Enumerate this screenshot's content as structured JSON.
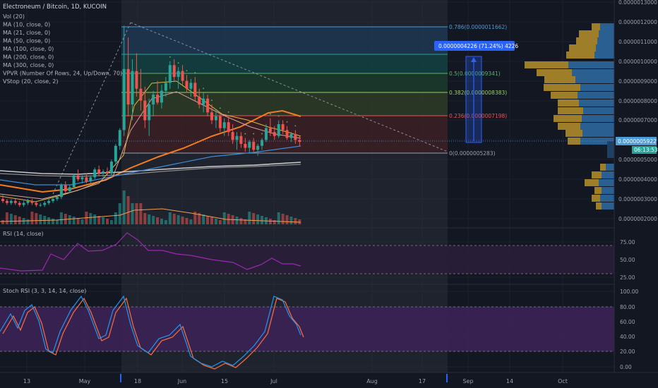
{
  "header": {
    "title": "Electroneum / Bitcoin, 1D, KUCOIN",
    "indicators": [
      "Vol (20)",
      "MA (10, close, 0)",
      "MA (21, close, 0)",
      "MA (50, close, 0)",
      "MA (100, close, 0)",
      "MA (200, close, 0)",
      "MA (300, close, 0)",
      "VPVR (Number Of Rows, 24, Up/Down, 70)",
      "VStop (20, close, 2)"
    ]
  },
  "colors": {
    "background": "#131722",
    "grid": "#1e2230",
    "up": "#26a69a",
    "down": "#ef5350",
    "ma_orange": "#f57c1f",
    "ma_yellow": "#e0b53a",
    "ma_pink": "#d9a0a0",
    "ma_blue": "#3d8bd4",
    "ma_white": "#c8c8c8",
    "vpvr_up": "#2e6da4",
    "vpvr_down": "#b7902a",
    "rsi_line": "#9c27b0",
    "rsi_band": "#2a1e3a",
    "stoch_k": "#2196f3",
    "stoch_d": "#ff6d3a",
    "stoch_band": "#3b2255",
    "accent_blue": "#2962ff"
  },
  "price_axis": {
    "ticks": [
      "0.0000013000",
      "0.0000012000",
      "0.0000011000",
      "0.0000010000",
      "0.0000009000",
      "0.0000008000",
      "0.0000007000",
      "0.0000006000",
      "0.0000005000",
      "0.0000004000",
      "0.0000003000",
      "0.0000002000"
    ],
    "current_price": "0.0000005922",
    "countdown": "06:13:53"
  },
  "rsi": {
    "title": "RSI (14, close)",
    "ticks": [
      "75.00",
      "50.00",
      "25.00"
    ]
  },
  "stoch": {
    "title": "Stoch RSI (3, 3, 14, 14, close)",
    "ticks": [
      "100.00",
      "80.00",
      "60.00",
      "40.00",
      "20.00",
      "0.00"
    ]
  },
  "time_axis": {
    "labels": [
      "13",
      "May",
      "18",
      "Jun",
      "15",
      "Jul",
      "Aug",
      "17",
      "Sep",
      "14",
      "Oct"
    ]
  },
  "fib": {
    "levels": [
      {
        "label": "0.786(0.0000011662)",
        "color": "#4b9bd6"
      },
      {
        "label": "0.5(0.0000009341)",
        "color": "#58b56c"
      },
      {
        "label": "0.382(0.0000008383)",
        "color": "#9ccc65"
      },
      {
        "label": "0.236(0.0000007198)",
        "color": "#ef5350"
      },
      {
        "label": "0(0.0000005283)",
        "color": "#9aa0ab"
      }
    ]
  },
  "measure": {
    "label": "0.0000004226 (71.24%) 4226"
  },
  "chart_data": {
    "type": "candlestick",
    "title": "Electroneum / Bitcoin, 1D, KUCOIN",
    "xlabel": "",
    "ylabel": "",
    "ylim": [
      1.7e-07,
      1.3e-06
    ],
    "candles": [
      [
        3e-07,
        3.2e-07,
        2.8e-07,
        2.9e-07
      ],
      [
        2.9e-07,
        3e-07,
        2.7e-07,
        2.8e-07
      ],
      [
        2.8e-07,
        3e-07,
        2.7e-07,
        2.9e-07
      ],
      [
        2.9e-07,
        3e-07,
        2.7e-07,
        2.8e-07
      ],
      [
        2.8e-07,
        2.9e-07,
        2.6e-07,
        2.7e-07
      ],
      [
        2.7e-07,
        2.9e-07,
        2.6e-07,
        2.8e-07
      ],
      [
        2.8e-07,
        3e-07,
        2.7e-07,
        2.9e-07
      ],
      [
        2.9e-07,
        3e-07,
        2.7e-07,
        2.8e-07
      ],
      [
        2.8e-07,
        2.9e-07,
        2.6e-07,
        2.7e-07
      ],
      [
        2.7e-07,
        2.8e-07,
        2.6e-07,
        2.7e-07
      ],
      [
        2.7e-07,
        2.9e-07,
        2.6e-07,
        2.8e-07
      ],
      [
        2.8e-07,
        3e-07,
        2.7e-07,
        2.9e-07
      ],
      [
        2.9e-07,
        3.1e-07,
        2.8e-07,
        3e-07
      ],
      [
        3e-07,
        3.2e-07,
        2.9e-07,
        3.1e-07
      ],
      [
        3.1e-07,
        3.8e-07,
        3e-07,
        3.7e-07
      ],
      [
        3.7e-07,
        3.9e-07,
        3.3e-07,
        3.4e-07
      ],
      [
        3.4e-07,
        3.7e-07,
        3.3e-07,
        3.6e-07
      ],
      [
        3.6e-07,
        4.3e-07,
        3.5e-07,
        4.2e-07
      ],
      [
        4.2e-07,
        4.5e-07,
        3.9e-07,
        4e-07
      ],
      [
        4e-07,
        4.2e-07,
        3.8e-07,
        4.1e-07
      ],
      [
        4.1e-07,
        4.3e-07,
        3.8e-07,
        3.9e-07
      ],
      [
        3.9e-07,
        4.2e-07,
        3.8e-07,
        4.1e-07
      ],
      [
        4.1e-07,
        4.6e-07,
        4e-07,
        4.5e-07
      ],
      [
        4.5e-07,
        4.7e-07,
        4.2e-07,
        4.3e-07
      ],
      [
        4.3e-07,
        4.5e-07,
        4.1e-07,
        4.4e-07
      ],
      [
        4.4e-07,
        4.6e-07,
        4.2e-07,
        4.3e-07
      ],
      [
        4.3e-07,
        5e-07,
        4.2e-07,
        4.9e-07
      ],
      [
        4.9e-07,
        5.8e-07,
        4.7e-07,
        5.7e-07
      ],
      [
        5.7e-07,
        6.6e-07,
        5.5e-07,
        6.5e-07
      ],
      [
        6.5e-07,
        1.18e-06,
        6.2e-07,
        9.6e-07
      ],
      [
        9.6e-07,
        1.12e-06,
        7.2e-07,
        7.8e-07
      ],
      [
        7.8e-07,
        1.01e-06,
        7e-07,
        9.5e-07
      ],
      [
        9.5e-07,
        1.04e-06,
        8.2e-07,
        8.6e-07
      ],
      [
        8.6e-07,
        9.6e-07,
        7.5e-07,
        8e-07
      ],
      [
        8e-07,
        8.7e-07,
        6.6e-07,
        7e-07
      ],
      [
        7e-07,
        8.1e-07,
        6.2e-07,
        7.8e-07
      ],
      [
        7.8e-07,
        8.5e-07,
        7.2e-07,
        8.3e-07
      ],
      [
        8.3e-07,
        9e-07,
        7.8e-07,
        7.9e-07
      ],
      [
        7.9e-07,
        8.8e-07,
        7.6e-07,
        8.5e-07
      ],
      [
        8.5e-07,
        9.2e-07,
        8.2e-07,
        8.9e-07
      ],
      [
        8.9e-07,
        1e-06,
        8.6e-07,
        9.8e-07
      ],
      [
        9.8e-07,
        1.01e-06,
        9e-07,
        9.2e-07
      ],
      [
        9.2e-07,
        9.7e-07,
        8.6e-07,
        9.5e-07
      ],
      [
        9.5e-07,
        9.8e-07,
        8.8e-07,
        9e-07
      ],
      [
        9e-07,
        9.3e-07,
        8.4e-07,
        8.6e-07
      ],
      [
        8.6e-07,
        9.1e-07,
        8.2e-07,
        8.9e-07
      ],
      [
        8.9e-07,
        9.2e-07,
        8e-07,
        8.2e-07
      ],
      [
        8.2e-07,
        8.6e-07,
        7.6e-07,
        7.8e-07
      ],
      [
        7.8e-07,
        8.4e-07,
        7.4e-07,
        8.1e-07
      ],
      [
        8.1e-07,
        8.3e-07,
        7.2e-07,
        7.4e-07
      ],
      [
        7.4e-07,
        7.8e-07,
        6.8e-07,
        7e-07
      ],
      [
        7e-07,
        7.5e-07,
        6.6e-07,
        7.2e-07
      ],
      [
        7.2e-07,
        7.4e-07,
        6.4e-07,
        6.6e-07
      ],
      [
        6.6e-07,
        7.1e-07,
        6.2e-07,
        6.9e-07
      ],
      [
        6.9e-07,
        7.2e-07,
        6.2e-07,
        6.4e-07
      ],
      [
        6.4e-07,
        6.8e-07,
        5.8e-07,
        6e-07
      ],
      [
        6e-07,
        6.4e-07,
        5.5e-07,
        6.2e-07
      ],
      [
        6.2e-07,
        6.4e-07,
        5.6e-07,
        5.8e-07
      ],
      [
        5.8e-07,
        6.1e-07,
        5.4e-07,
        5.6e-07
      ],
      [
        5.6e-07,
        6e-07,
        5.3e-07,
        5.9e-07
      ],
      [
        5.9e-07,
        6.1e-07,
        5.4e-07,
        5.5e-07
      ],
      [
        5.5e-07,
        5.8e-07,
        5.2e-07,
        5.7e-07
      ],
      [
        5.7e-07,
        6.1e-07,
        5.5e-07,
        6e-07
      ],
      [
        6e-07,
        6.8e-07,
        5.9e-07,
        6.6e-07
      ],
      [
        6.6e-07,
        7.1e-07,
        6.2e-07,
        6.4e-07
      ],
      [
        6.4e-07,
        6.7e-07,
        6e-07,
        6.2e-07
      ],
      [
        6.2e-07,
        7e-07,
        6.1e-07,
        6.8e-07
      ],
      [
        6.8e-07,
        7e-07,
        6.3e-07,
        6.5e-07
      ],
      [
        6.5e-07,
        6.7e-07,
        6e-07,
        6.1e-07
      ],
      [
        6.1e-07,
        6.4e-07,
        5.9e-07,
        6.3e-07
      ],
      [
        6.3e-07,
        6.5e-07,
        5.8e-07,
        6e-07
      ],
      [
        6e-07,
        6.2e-07,
        5.7e-07,
        5.9e-07
      ]
    ]
  }
}
